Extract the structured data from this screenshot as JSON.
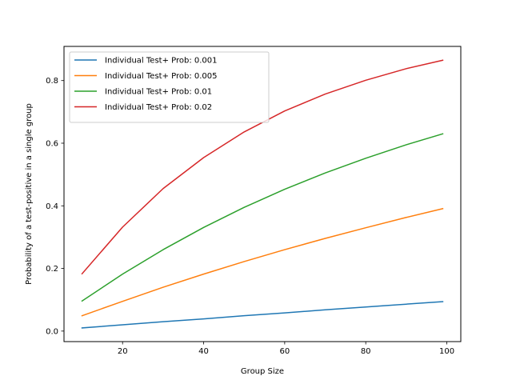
{
  "chart_data": {
    "type": "line",
    "title": "",
    "xlabel": "Group Size",
    "ylabel": "Probability of a test-positive in a single group",
    "xlim": [
      5.55,
      103.45
    ],
    "ylim": [
      -0.0336,
      0.9091
    ],
    "xticks": [
      20,
      40,
      60,
      80,
      100
    ],
    "xtick_labels": [
      "20",
      "40",
      "60",
      "80",
      "100"
    ],
    "yticks": [
      0.0,
      0.2,
      0.4,
      0.6,
      0.8
    ],
    "ytick_labels": [
      "0.0",
      "0.2",
      "0.4",
      "0.6",
      "0.8"
    ],
    "grid": false,
    "legend_position": "top-left",
    "x": [
      10,
      20,
      30,
      40,
      50,
      60,
      70,
      80,
      90,
      99
    ],
    "series": [
      {
        "name": "Individual Test+ Prob: 0.001",
        "color": "#1f77b4",
        "values": [
          0.01,
          0.02,
          0.03,
          0.039,
          0.049,
          0.058,
          0.068,
          0.077,
          0.086,
          0.094
        ]
      },
      {
        "name": "Individual Test+ Prob: 0.005",
        "color": "#ff7f0e",
        "values": [
          0.049,
          0.095,
          0.14,
          0.182,
          0.222,
          0.26,
          0.296,
          0.33,
          0.363,
          0.391
        ]
      },
      {
        "name": "Individual Test+ Prob: 0.01",
        "color": "#2ca02c",
        "values": [
          0.096,
          0.182,
          0.26,
          0.331,
          0.395,
          0.453,
          0.505,
          0.552,
          0.595,
          0.63
        ]
      },
      {
        "name": "Individual Test+ Prob: 0.02",
        "color": "#d62728",
        "values": [
          0.183,
          0.332,
          0.455,
          0.554,
          0.636,
          0.703,
          0.757,
          0.801,
          0.838,
          0.865
        ]
      }
    ]
  }
}
